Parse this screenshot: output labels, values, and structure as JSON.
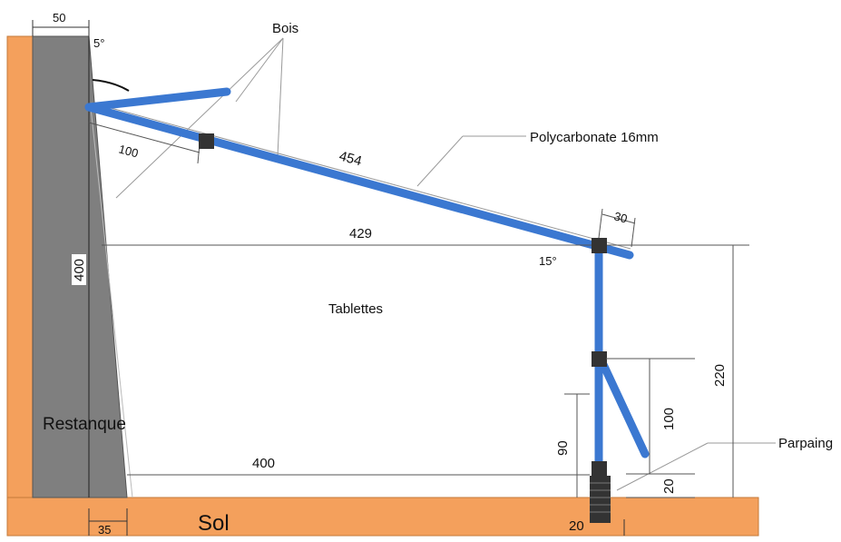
{
  "labels": {
    "bois": "Bois",
    "polycarbonate": "Polycarbonate 16mm",
    "tablettes": "Tablettes",
    "restanque": "Restanque",
    "sol": "Sol",
    "parpaing": "Parpaing"
  },
  "dimensions": {
    "wall_width": "50",
    "wall_angle": "5°",
    "offset_100": "100",
    "roof_length": "454",
    "overhang": "30",
    "roof_span": "429",
    "roof_angle": "15°",
    "wall_height": "400",
    "post_height": "220",
    "brace_height": "100",
    "tablette_height": "90",
    "base_height": "20",
    "ground_span": "400",
    "wall_base": "35",
    "block_width": "20"
  },
  "colors": {
    "ground": "#f4a05c",
    "wall": "#7f7f7f",
    "frame": "#3b78d1",
    "connector": "#333333"
  }
}
